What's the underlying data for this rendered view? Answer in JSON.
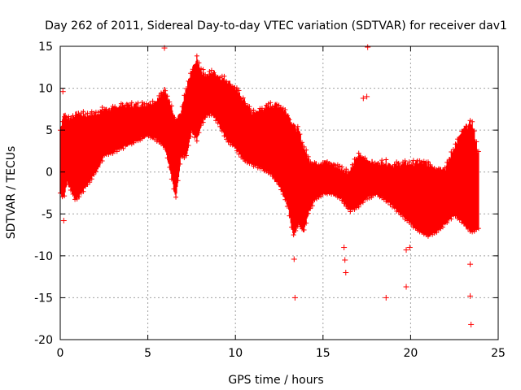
{
  "chart_data": {
    "type": "scatter",
    "title": "Day 262 of 2011, Sidereal Day-to-day VTEC variation (SDTVAR) for receiver dav1",
    "xlabel": "GPS time / hours",
    "ylabel": "SDTVAR / TECUs",
    "xlim": [
      0,
      25
    ],
    "ylim": [
      -20,
      15
    ],
    "xticks": [
      0,
      5,
      10,
      15,
      20,
      25
    ],
    "yticks": [
      -20,
      -15,
      -10,
      -5,
      0,
      5,
      10,
      15
    ],
    "grid": true,
    "legend": "none",
    "marker": "+",
    "series_color": "#ff0000",
    "band_data": {
      "description": "dense scatter envelope: at each GPS time x (hours), points span from lower to upper SDTVAR (TECU)",
      "x": [
        0.0,
        0.2,
        0.4,
        0.6,
        0.8,
        1.0,
        1.5,
        2.0,
        2.5,
        3.0,
        3.5,
        4.0,
        4.5,
        5.0,
        5.5,
        6.0,
        6.3,
        6.6,
        6.9,
        7.2,
        7.5,
        7.8,
        8.1,
        8.4,
        8.7,
        9.0,
        9.5,
        10.0,
        10.5,
        11.0,
        11.5,
        12.0,
        12.5,
        13.0,
        13.3,
        13.6,
        13.9,
        14.2,
        14.6,
        15.0,
        15.5,
        16.0,
        16.5,
        17.0,
        17.5,
        18.0,
        18.5,
        19.0,
        19.5,
        20.0,
        20.5,
        21.0,
        21.5,
        22.0,
        22.5,
        23.0,
        23.5,
        23.9
      ],
      "upper": [
        5.0,
        7.0,
        6.5,
        6.5,
        6.8,
        7.0,
        6.8,
        7.0,
        7.5,
        7.5,
        8.0,
        8.0,
        8.0,
        8.2,
        8.5,
        10.0,
        8.0,
        6.0,
        7.0,
        10.0,
        12.0,
        13.5,
        12.0,
        11.5,
        12.0,
        11.5,
        11.0,
        10.0,
        8.5,
        7.0,
        7.5,
        8.0,
        8.0,
        7.0,
        5.5,
        5.0,
        3.0,
        1.5,
        1.0,
        1.2,
        1.0,
        0.5,
        0.0,
        2.0,
        1.5,
        1.0,
        1.2,
        0.8,
        1.0,
        1.0,
        1.2,
        1.0,
        0.5,
        0.5,
        3.0,
        5.0,
        6.0,
        2.0
      ],
      "lower": [
        -2.5,
        -3.0,
        -1.0,
        -2.0,
        -3.0,
        -3.0,
        -1.5,
        0.0,
        2.0,
        2.5,
        3.0,
        3.5,
        4.0,
        4.5,
        4.0,
        3.0,
        0.0,
        -3.0,
        2.0,
        2.0,
        5.0,
        4.0,
        6.0,
        7.0,
        7.0,
        6.0,
        4.0,
        3.0,
        1.5,
        1.0,
        0.5,
        0.0,
        -1.5,
        -4.0,
        -7.5,
        -6.0,
        -7.0,
        -4.5,
        -3.0,
        -2.5,
        -2.5,
        -3.0,
        -4.5,
        -4.0,
        -3.0,
        -2.5,
        -3.0,
        -4.0,
        -5.0,
        -6.0,
        -7.0,
        -7.5,
        -7.0,
        -6.0,
        -5.0,
        -6.0,
        -7.0,
        -6.5
      ]
    },
    "outliers": [
      [
        0.15,
        9.6
      ],
      [
        0.2,
        -5.8
      ],
      [
        5.95,
        14.8
      ],
      [
        13.35,
        -10.4
      ],
      [
        13.4,
        -15.0
      ],
      [
        16.2,
        -9.0
      ],
      [
        16.25,
        -10.5
      ],
      [
        16.3,
        -12.0
      ],
      [
        17.55,
        14.9
      ],
      [
        17.5,
        9.0
      ],
      [
        17.3,
        8.8
      ],
      [
        18.6,
        -15.0
      ],
      [
        19.75,
        -9.3
      ],
      [
        19.75,
        -13.7
      ],
      [
        19.95,
        -9.0
      ],
      [
        20.2,
        -5.8
      ],
      [
        23.4,
        -11.0
      ],
      [
        23.4,
        -14.8
      ],
      [
        23.45,
        -18.2
      ],
      [
        23.5,
        0.2
      ]
    ]
  }
}
